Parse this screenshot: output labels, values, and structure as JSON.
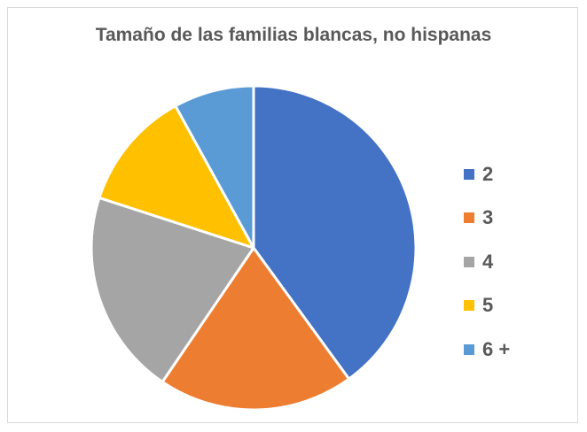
{
  "chart_data": {
    "type": "pie",
    "title": "Tamaño de las familias blancas, no hispanas",
    "categories": [
      "2",
      "3",
      "4",
      "5",
      "6 +"
    ],
    "values": [
      40.0,
      19.5,
      20.5,
      12.0,
      8.0
    ],
    "colors": [
      "#4472c4",
      "#ed7d31",
      "#a5a5a5",
      "#ffc000",
      "#5b9bd5"
    ],
    "legend_position": "right"
  }
}
